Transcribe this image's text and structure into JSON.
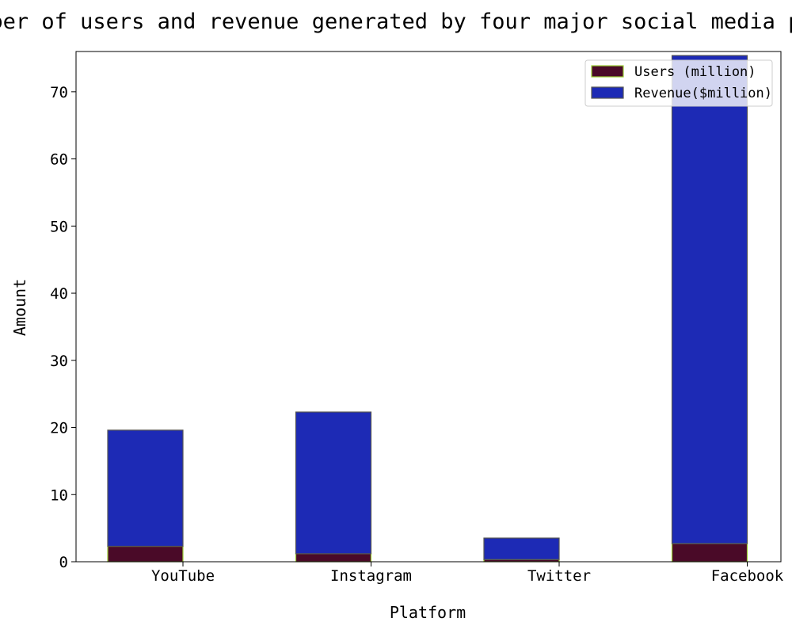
{
  "chart_data": {
    "type": "bar",
    "title": "Number of users and revenue generated by four major social media platforms",
    "xlabel": "Platform",
    "ylabel": "Amount",
    "categories": [
      "YouTube",
      "Instagram",
      "Twitter",
      "Facebook"
    ],
    "series": [
      {
        "name": "Users (million)",
        "values": [
          2.3,
          1.2,
          0.33,
          2.7
        ],
        "color": "#4a0a28",
        "edge": "#9acd32"
      },
      {
        "name": "Revenue($million)",
        "values": [
          17.3,
          21.1,
          3.2,
          72.7
        ],
        "color": "#1d2ab5",
        "edge": "#555555"
      }
    ],
    "ylim": [
      0,
      76
    ],
    "yticks": [
      0,
      10,
      20,
      30,
      40,
      50,
      60,
      70
    ],
    "legend_position": "top-right",
    "grid": false
  }
}
